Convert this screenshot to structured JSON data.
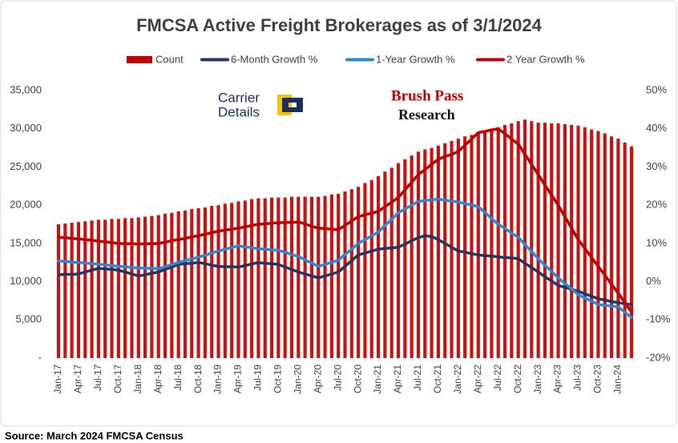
{
  "chart_data": {
    "type": "bar",
    "title": "FMCSA Active Freight Brokerages as of 3/1/2024",
    "source": "Source: March 2024 FMCSA Census",
    "annotations": [
      "Carrier",
      "Details",
      "Brush Pass",
      "Research"
    ],
    "categories": [
      "Jan-17",
      null,
      null,
      "Apr-17",
      null,
      null,
      "Jul-17",
      null,
      null,
      "Oct-17",
      null,
      null,
      "Jan-18",
      null,
      null,
      "Apr-18",
      null,
      null,
      "Jul-18",
      null,
      null,
      "Oct-18",
      null,
      null,
      "Jan-19",
      null,
      null,
      "Apr-19",
      null,
      null,
      "Jul-19",
      null,
      null,
      "Oct-19",
      null,
      null,
      "Jan-20",
      null,
      null,
      "Apr-20",
      null,
      null,
      "Jul-20",
      null,
      null,
      "Oct-20",
      null,
      null,
      "Jan-21",
      null,
      null,
      "Apr-21",
      null,
      null,
      "Jul-21",
      null,
      null,
      "Oct-21",
      null,
      null,
      "Jan-22",
      null,
      null,
      "Apr-22",
      null,
      null,
      "Jul-22",
      null,
      null,
      "Oct-22",
      null,
      null,
      "Jan-23",
      null,
      null,
      "Apr-23",
      null,
      null,
      "Jul-23",
      null,
      null,
      "Oct-23",
      null,
      null,
      "Jan-24",
      null,
      null
    ],
    "series": [
      {
        "name": "Count",
        "type": "bar",
        "axis": "y",
        "color": "#c00000",
        "values": [
          17500,
          17600,
          17700,
          17800,
          17900,
          18000,
          18100,
          18100,
          18200,
          18200,
          18300,
          18300,
          18400,
          18500,
          18600,
          18700,
          18900,
          19000,
          19200,
          19300,
          19500,
          19600,
          19700,
          19900,
          20000,
          20200,
          20300,
          20500,
          20600,
          20800,
          20900,
          20900,
          21000,
          21000,
          21000,
          21100,
          21100,
          21100,
          21100,
          21100,
          21200,
          21400,
          21500,
          21800,
          22100,
          22400,
          22900,
          23300,
          23800,
          24400,
          24900,
          25500,
          26000,
          26500,
          27000,
          27300,
          27500,
          27800,
          28100,
          28400,
          28700,
          29000,
          29200,
          29500,
          29700,
          30000,
          30200,
          30500,
          30700,
          31000,
          31200,
          31000,
          30800,
          30800,
          30700,
          30700,
          30600,
          30500,
          30400,
          30200,
          29900,
          29700,
          29400,
          29000,
          28700,
          28200,
          27700
        ]
      },
      {
        "name": "6-Month Growth %",
        "type": "line",
        "axis": "y2",
        "color": "#1f3864",
        "values": [
          1.8,
          1.9,
          1.9,
          2,
          2.5,
          3,
          3.5,
          3.3,
          3.2,
          3,
          2.5,
          2,
          1.5,
          1.8,
          2.2,
          2.5,
          3.2,
          3.8,
          4.5,
          4.7,
          4.8,
          5,
          4.7,
          4.3,
          4,
          3.9,
          3.9,
          3.8,
          4.2,
          4.6,
          5,
          4.8,
          4.7,
          4.5,
          3.8,
          3.2,
          2.5,
          2,
          1.5,
          1,
          1.5,
          2,
          2.5,
          4,
          5.5,
          7,
          7.5,
          8,
          8.5,
          8.7,
          8.8,
          9,
          9.8,
          10.7,
          11.5,
          12,
          11.8,
          11,
          10,
          9,
          8,
          7.7,
          7.3,
          7,
          6.8,
          6.7,
          6.5,
          6.3,
          6.2,
          6,
          4.8,
          3.7,
          2.5,
          1.3,
          0.2,
          -1,
          -1.5,
          -2,
          -2.5,
          -3.2,
          -3.8,
          -4.5,
          -4.8,
          -5.2,
          -5.5,
          -5.8,
          -6
        ]
      },
      {
        "name": "1-Year Growth %",
        "type": "line",
        "axis": "y2",
        "color": "#2b8ad6",
        "values": [
          5.4,
          5.3,
          5.1,
          5,
          4.9,
          4.7,
          4.6,
          4.4,
          4.2,
          4,
          3.9,
          3.7,
          3.6,
          3.5,
          3.5,
          3.4,
          3.9,
          4.5,
          5,
          5.5,
          5.9,
          6.4,
          6.9,
          7.5,
          8,
          8.5,
          8.9,
          9.4,
          9.1,
          8.9,
          8.6,
          8.5,
          8.3,
          8.2,
          7.7,
          7.1,
          6.6,
          5.7,
          4.9,
          4,
          4.5,
          5.1,
          5.6,
          7.1,
          8.5,
          10,
          11,
          12,
          13,
          14.7,
          16.3,
          18,
          19,
          20,
          21,
          21.2,
          21.4,
          21.6,
          21.3,
          21.1,
          20.8,
          20.4,
          20,
          19.6,
          18.1,
          16.5,
          15,
          13.9,
          12.7,
          11.6,
          9.7,
          7.9,
          6,
          4.3,
          2.7,
          1,
          -0.5,
          -1.9,
          -3.4,
          -4.3,
          -5.1,
          -6,
          -6.2,
          -6.4,
          -6.6,
          -8,
          -9.4
        ]
      },
      {
        "name": "2 Year Growth %",
        "type": "line",
        "axis": "y2",
        "color": "#c00000",
        "values": [
          11.6,
          11.5,
          11.3,
          11.2,
          11,
          10.8,
          10.6,
          10.4,
          10.2,
          10,
          9.9,
          9.9,
          9.8,
          9.9,
          9.9,
          10,
          10.3,
          10.7,
          11,
          11.3,
          11.7,
          12,
          12.4,
          12.8,
          13.2,
          13.5,
          13.7,
          14,
          14.3,
          14.7,
          15,
          15.1,
          15.3,
          15.4,
          15.5,
          15.5,
          15.6,
          15.1,
          14.5,
          14,
          13.9,
          13.7,
          13.6,
          14.7,
          15.9,
          17,
          17.5,
          17.9,
          18.4,
          19.6,
          20.8,
          22,
          24,
          26,
          28,
          29.3,
          30.7,
          32,
          32.7,
          33.3,
          34,
          35.7,
          37.3,
          39,
          39.3,
          39.7,
          40,
          38.7,
          37.3,
          36,
          33.3,
          30.7,
          28,
          25.3,
          22.7,
          20,
          17,
          14,
          11,
          8.7,
          6.3,
          4,
          1.7,
          -0.7,
          -3,
          -5.5,
          -8
        ]
      }
    ],
    "ylim": [
      0,
      35000
    ],
    "yticks": [
      {
        "value": 0,
        "label": "-"
      },
      {
        "value": 5000,
        "label": "5,000"
      },
      {
        "value": 10000,
        "label": "10,000"
      },
      {
        "value": 15000,
        "label": "15,000"
      },
      {
        "value": 20000,
        "label": "20,000"
      },
      {
        "value": 25000,
        "label": "25,000"
      },
      {
        "value": 30000,
        "label": "30,000"
      },
      {
        "value": 35000,
        "label": "35,000"
      }
    ],
    "y2lim": [
      -20,
      50
    ],
    "y2ticks": [
      {
        "value": -20,
        "label": "-20%"
      },
      {
        "value": -10,
        "label": "-10%"
      },
      {
        "value": 0,
        "label": "0%"
      },
      {
        "value": 10,
        "label": "10%"
      },
      {
        "value": 20,
        "label": "20%"
      },
      {
        "value": 30,
        "label": "30%"
      },
      {
        "value": 40,
        "label": "40%"
      },
      {
        "value": 50,
        "label": "50%"
      }
    ],
    "legend": "top"
  }
}
